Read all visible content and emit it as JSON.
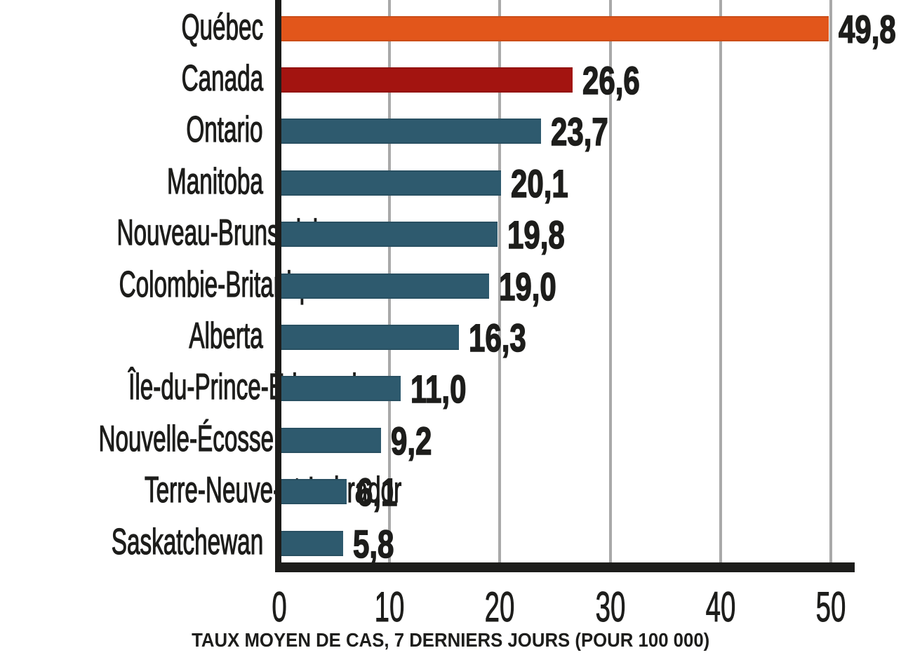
{
  "chart_data": {
    "type": "bar",
    "orientation": "horizontal",
    "title": "",
    "xlabel": "TAUX MOYEN DE CAS, 7 DERNIERS JOURS (POUR 100 000)",
    "ylabel": "",
    "xlim": [
      0,
      50
    ],
    "xticks": [
      0,
      10,
      20,
      30,
      40,
      50
    ],
    "xtick_labels": [
      "0",
      "10",
      "20",
      "30",
      "40",
      "50"
    ],
    "grid": true,
    "legend": false,
    "categories": [
      "Québec",
      "Canada",
      "Ontario",
      "Manitoba",
      "Nouveau-Brunswick",
      "Colombie-Britanique",
      "Alberta",
      "Île-du-Prince-Édouard",
      "Nouvelle-Écosse",
      "Terre-Neuve-et-Labrador",
      "Saskatchewan"
    ],
    "values": [
      49.8,
      26.6,
      23.7,
      20.1,
      19.8,
      19.0,
      16.3,
      11.0,
      9.2,
      6.1,
      5.8
    ],
    "value_labels": [
      "49,8",
      "26,6",
      "23,7",
      "20,1",
      "19,8",
      "19,0",
      "16,3",
      "11,0",
      "9,2",
      "6,1",
      "5,8"
    ],
    "bar_colors": [
      "#E2561B",
      "#A31410",
      "#2E5A6E",
      "#2E5A6E",
      "#2E5A6E",
      "#2E5A6E",
      "#2E5A6E",
      "#2E5A6E",
      "#2E5A6E",
      "#2E5A6E",
      "#2E5A6E"
    ]
  },
  "colors": {
    "highlight_quebec": "#E2561B",
    "highlight_canada": "#A31410",
    "province": "#2E5A6E",
    "gridline": "#A9A9A9",
    "axis": "#1D1D1B",
    "text": "#1D1D1B",
    "background": "#FFFFFF"
  }
}
